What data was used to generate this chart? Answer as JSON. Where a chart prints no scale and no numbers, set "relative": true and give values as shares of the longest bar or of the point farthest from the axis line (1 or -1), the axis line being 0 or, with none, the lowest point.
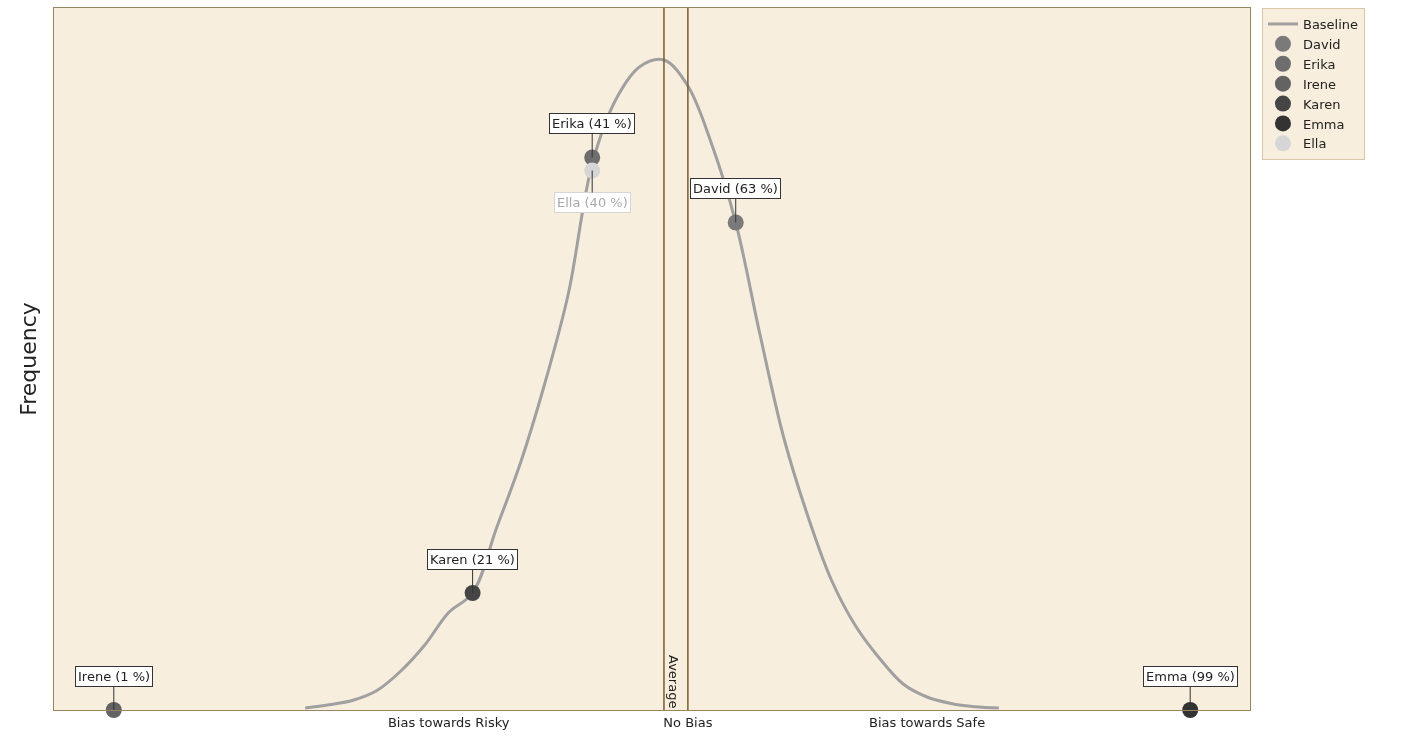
{
  "chart_data": {
    "type": "line",
    "relative": true,
    "ylabel": "Frequency",
    "categories": [
      null,
      null,
      null,
      null,
      null,
      null,
      null,
      null,
      null,
      null,
      null,
      null,
      null,
      null,
      null,
      null,
      "Bias towards Risky",
      null,
      null,
      null,
      null,
      null,
      null,
      null,
      null,
      null,
      "No Bias",
      null,
      null,
      null,
      null,
      null,
      null,
      null,
      null,
      null,
      "Bias towards Safe",
      null,
      null,
      null,
      null,
      null,
      null,
      null,
      null,
      null,
      null,
      null,
      null,
      null
    ],
    "series": [
      {
        "name": "Baseline",
        "color": "#a0a0a0",
        "marker": "none",
        "values": [
          null,
          null,
          null,
          null,
          null,
          null,
          null,
          null,
          null,
          null,
          0.003,
          0.008,
          0.015,
          0.03,
          0.06,
          0.1,
          0.15,
          0.18,
          0.28,
          0.38,
          0.5,
          0.64,
          0.84,
          0.94,
          0.99,
          1,
          0.96,
          0.87,
          0.75,
          0.58,
          0.42,
          0.3,
          0.2,
          0.13,
          0.08,
          0.04,
          0.02,
          0.01,
          0.005,
          0.003,
          null,
          null,
          null,
          null,
          null,
          null,
          null,
          null,
          null,
          null
        ]
      },
      {
        "name": "David",
        "type": "scatter",
        "color": "#7a7a7a",
        "values": [
          null,
          null,
          null,
          null,
          null,
          null,
          null,
          null,
          null,
          null,
          null,
          null,
          null,
          null,
          null,
          null,
          null,
          null,
          null,
          null,
          null,
          null,
          null,
          null,
          null,
          null,
          null,
          null,
          0.75,
          null,
          null,
          null,
          null,
          null,
          null,
          null,
          null,
          null,
          null,
          null,
          null,
          null,
          null,
          null,
          null,
          null,
          null,
          null,
          null,
          null
        ]
      },
      {
        "name": "Erika",
        "type": "scatter",
        "color": "#6e6e6e",
        "values": [
          null,
          null,
          null,
          null,
          null,
          null,
          null,
          null,
          null,
          null,
          null,
          null,
          null,
          null,
          null,
          null,
          null,
          null,
          null,
          null,
          null,
          null,
          0.85,
          null,
          null,
          null,
          null,
          null,
          null,
          null,
          null,
          null,
          null,
          null,
          null,
          null,
          null,
          null,
          null,
          null,
          null,
          null,
          null,
          null,
          null,
          null,
          null,
          null,
          null,
          null
        ]
      },
      {
        "name": "Irene",
        "type": "scatter",
        "color": "#636363",
        "values": [
          null,
          null,
          0,
          null,
          null,
          null,
          null,
          null,
          null,
          null,
          null,
          null,
          null,
          null,
          null,
          null,
          null,
          null,
          null,
          null,
          null,
          null,
          null,
          null,
          null,
          null,
          null,
          null,
          null,
          null,
          null,
          null,
          null,
          null,
          null,
          null,
          null,
          null,
          null,
          null,
          null,
          null,
          null,
          null,
          null,
          null,
          null,
          null,
          null,
          null
        ]
      },
      {
        "name": "Karen",
        "type": "scatter",
        "color": "#454545",
        "values": [
          null,
          null,
          null,
          null,
          null,
          null,
          null,
          null,
          null,
          null,
          null,
          null,
          null,
          null,
          null,
          null,
          null,
          0.18,
          null,
          null,
          null,
          null,
          null,
          null,
          null,
          null,
          null,
          null,
          null,
          null,
          null,
          null,
          null,
          null,
          null,
          null,
          null,
          null,
          null,
          null,
          null,
          null,
          null,
          null,
          null,
          null,
          null,
          null,
          null,
          null
        ]
      },
      {
        "name": "Emma",
        "type": "scatter",
        "color": "#333333",
        "values": [
          null,
          null,
          null,
          null,
          null,
          null,
          null,
          null,
          null,
          null,
          null,
          null,
          null,
          null,
          null,
          null,
          null,
          null,
          null,
          null,
          null,
          null,
          null,
          null,
          null,
          null,
          null,
          null,
          null,
          null,
          null,
          null,
          null,
          null,
          null,
          null,
          null,
          null,
          null,
          null,
          null,
          null,
          null,
          null,
          null,
          null,
          null,
          0,
          null,
          null
        ]
      },
      {
        "name": "Ella",
        "type": "scatter",
        "color": "#d6d6d6",
        "values": [
          null,
          null,
          null,
          null,
          null,
          null,
          null,
          null,
          null,
          null,
          null,
          null,
          null,
          null,
          null,
          null,
          null,
          null,
          null,
          null,
          null,
          null,
          0.83,
          null,
          null,
          null,
          null,
          null,
          null,
          null,
          null,
          null,
          null,
          null,
          null,
          null,
          null,
          null,
          null,
          null,
          null,
          null,
          null,
          null,
          null,
          null,
          null,
          null,
          null,
          null
        ]
      }
    ],
    "marker": "circle",
    "ref_lines": [
      {
        "axis": "x",
        "label": "Average",
        "color": "#7a5c2e"
      },
      {
        "axis": "x",
        "value": "No Bias",
        "label": null,
        "color": "#7a5c2e"
      }
    ],
    "annotations": [
      {
        "text": "David (63 %)",
        "y": 0.75
      },
      {
        "text": "Erika (41 %)",
        "y": 0.85
      },
      {
        "text": "Irene (1 %)",
        "y": 0
      },
      {
        "text": "Karen (21 %)",
        "y": 0.18
      },
      {
        "text": "Emma (99 %)",
        "y": 0
      },
      {
        "text": "Ella (40 %)",
        "y": 0.83
      }
    ],
    "legend": "top right"
  }
}
